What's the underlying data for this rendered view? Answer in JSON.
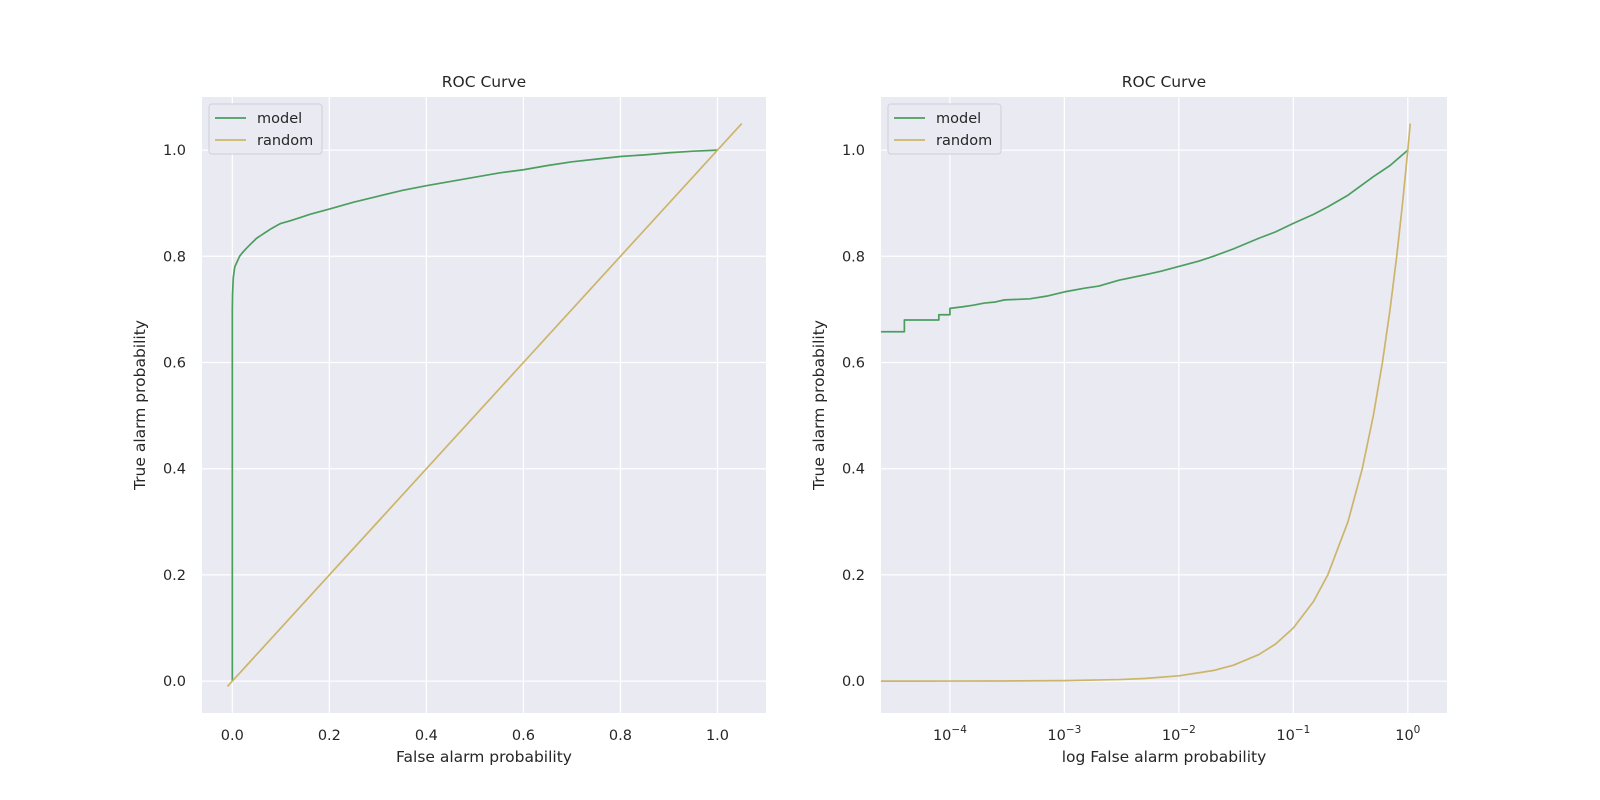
{
  "chart_data": [
    {
      "type": "line",
      "title": "ROC Curve",
      "xlabel": "False alarm probability",
      "ylabel": "True alarm probability",
      "xscale": "linear",
      "xlim": [
        -0.0625,
        1.1
      ],
      "ylim": [
        -0.06,
        1.1
      ],
      "xticks": [
        0.0,
        0.2,
        0.4,
        0.6,
        0.8,
        1.0
      ],
      "xtick_labels": [
        "0.0",
        "0.2",
        "0.4",
        "0.6",
        "0.8",
        "1.0"
      ],
      "yticks": [
        0.0,
        0.2,
        0.4,
        0.6,
        0.8,
        1.0
      ],
      "ytick_labels": [
        "0.0",
        "0.2",
        "0.4",
        "0.6",
        "0.8",
        "1.0"
      ],
      "grid": true,
      "legend": "upper-left",
      "series": [
        {
          "name": "model",
          "color": "#4c9e5f",
          "x": [
            0.0,
            0.0,
            0.0005,
            0.002,
            0.005,
            0.01,
            0.015,
            0.02,
            0.03,
            0.04,
            0.05,
            0.06,
            0.07,
            0.08,
            0.09,
            0.1,
            0.12,
            0.14,
            0.16,
            0.18,
            0.2,
            0.25,
            0.3,
            0.35,
            0.4,
            0.45,
            0.5,
            0.55,
            0.6,
            0.65,
            0.7,
            0.75,
            0.8,
            0.85,
            0.9,
            0.95,
            1.0
          ],
          "y": [
            0.0,
            0.7,
            0.73,
            0.76,
            0.78,
            0.79,
            0.8,
            0.806,
            0.816,
            0.825,
            0.834,
            0.84,
            0.846,
            0.852,
            0.857,
            0.862,
            0.867,
            0.873,
            0.879,
            0.884,
            0.889,
            0.902,
            0.913,
            0.924,
            0.933,
            0.941,
            0.949,
            0.957,
            0.963,
            0.971,
            0.978,
            0.983,
            0.988,
            0.991,
            0.995,
            0.998,
            1.0
          ]
        },
        {
          "name": "random",
          "color": "#ccb56a",
          "x": [
            -0.01,
            1.05
          ],
          "y": [
            -0.01,
            1.05
          ]
        }
      ]
    },
    {
      "type": "line",
      "title": "ROC Curve",
      "xlabel": "log False alarm probability",
      "ylabel": "True alarm probability",
      "xscale": "log",
      "xlim": [
        2.5e-05,
        2.2
      ],
      "ylim": [
        -0.06,
        1.1
      ],
      "xticks": [
        0.0001,
        0.001,
        0.01,
        0.1,
        1.0
      ],
      "xtick_labels": [
        {
          "base": "10",
          "exp": "−4"
        },
        {
          "base": "10",
          "exp": "−3"
        },
        {
          "base": "10",
          "exp": "−2"
        },
        {
          "base": "10",
          "exp": "−1"
        },
        {
          "base": "10",
          "exp": "0"
        }
      ],
      "yticks": [
        0.0,
        0.2,
        0.4,
        0.6,
        0.8,
        1.0
      ],
      "ytick_labels": [
        "0.0",
        "0.2",
        "0.4",
        "0.6",
        "0.8",
        "1.0"
      ],
      "grid": true,
      "legend": "upper-left",
      "series": [
        {
          "name": "model",
          "color": "#4c9e5f",
          "x": [
            2.5e-05,
            4e-05,
            4e-05,
            8e-05,
            8e-05,
            0.0001,
            0.0001,
            0.00013,
            0.00016,
            0.0002,
            0.00025,
            0.0003,
            0.0004,
            0.0005,
            0.0007,
            0.001,
            0.0015,
            0.002,
            0.003,
            0.005,
            0.007,
            0.01,
            0.015,
            0.02,
            0.03,
            0.05,
            0.07,
            0.1,
            0.15,
            0.2,
            0.3,
            0.5,
            0.7,
            1.0
          ],
          "y": [
            0.658,
            0.658,
            0.68,
            0.68,
            0.69,
            0.69,
            0.702,
            0.705,
            0.708,
            0.712,
            0.714,
            0.718,
            0.719,
            0.72,
            0.725,
            0.733,
            0.74,
            0.744,
            0.755,
            0.765,
            0.772,
            0.781,
            0.791,
            0.8,
            0.814,
            0.834,
            0.846,
            0.862,
            0.879,
            0.893,
            0.915,
            0.95,
            0.971,
            1.0
          ]
        },
        {
          "name": "random",
          "color": "#ccb56a",
          "x": [
            2.5e-05,
            5e-05,
            0.0001,
            0.0003,
            0.001,
            0.003,
            0.005,
            0.01,
            0.02,
            0.03,
            0.05,
            0.07,
            0.1,
            0.15,
            0.2,
            0.3,
            0.4,
            0.5,
            0.6,
            0.7,
            0.8,
            0.9,
            1.0,
            1.05
          ],
          "y": [
            2.5e-05,
            5e-05,
            0.0001,
            0.0003,
            0.001,
            0.003,
            0.005,
            0.01,
            0.02,
            0.03,
            0.05,
            0.07,
            0.1,
            0.15,
            0.2,
            0.3,
            0.4,
            0.5,
            0.6,
            0.7,
            0.8,
            0.9,
            1.0,
            1.05
          ]
        }
      ]
    }
  ]
}
